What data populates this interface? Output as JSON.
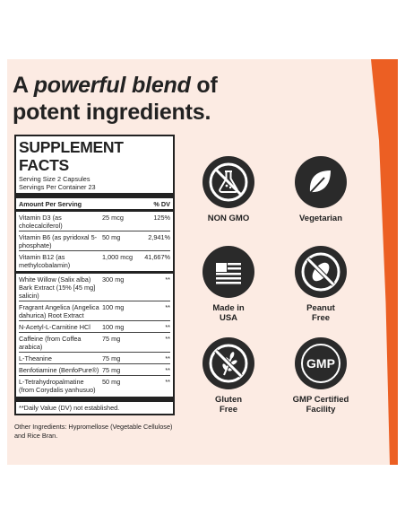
{
  "headline": {
    "pre": "A ",
    "emphasis": "powerful blend",
    "post_line1": " of",
    "line2": "potent ingredients."
  },
  "facts": {
    "title": "SUPPLEMENT FACTS",
    "serving_size": "Serving Size 2 Capsules",
    "servings_per_container": "Servings Per Container 23",
    "col_amount": "Amount Per Serving",
    "col_dv": "% DV",
    "rows": [
      {
        "name": "Vitamin D3 (as cholecalciferol)",
        "amount": "25 mcg",
        "dv": "125%"
      },
      {
        "name": "Vitamin B6 (as pyridoxal 5-phosphate)",
        "amount": "50 mg",
        "dv": "2,941%"
      },
      {
        "name": "Vitamin B12 (as methylcobalamin)",
        "amount": "1,000 mcg",
        "dv": "41,667%"
      },
      {
        "name": "White Willow (Salix alba) Bark Extract (15% [45 mg] salicin)",
        "amount": "300 mg",
        "dv": "**"
      },
      {
        "name": "Fragrant Angelica (Angelica dahurica) Root Extract",
        "amount": "100 mg",
        "dv": "**"
      },
      {
        "name": "N-Acetyl-L-Carnitine HCl",
        "amount": "100 mg",
        "dv": "**"
      },
      {
        "name": "Caffeine (from Coffea arabica)",
        "amount": "75 mg",
        "dv": "**"
      },
      {
        "name": "L-Theanine",
        "amount": "75 mg",
        "dv": "**"
      },
      {
        "name": "Benfotiamine (BenfoPure®)",
        "amount": "75 mg",
        "dv": "**"
      },
      {
        "name": "L-Tetrahydropalmatine (from Corydalis yanhusuo)",
        "amount": "50 mg",
        "dv": "**"
      }
    ],
    "footnote": "**Daily Value (DV) not established.",
    "other": "Other Ingredients: Hypromellose (Vegetable Cellulose) and Rice Bran."
  },
  "badges": [
    {
      "label": "NON GMO",
      "icon": "no-gmo-flask-icon"
    },
    {
      "label": "Vegetarian",
      "icon": "leaf-icon"
    },
    {
      "label": "Made in USA",
      "icon": "usa-flag-icon"
    },
    {
      "label": "Peanut Free",
      "icon": "no-peanut-icon"
    },
    {
      "label": "Gluten Free",
      "icon": "no-wheat-icon"
    },
    {
      "label": "GMP Certified Facility",
      "icon": "gmp-icon"
    }
  ],
  "gmp_text": "GMP",
  "colors": {
    "accent": "#ec5f23",
    "panel": "#fcebe3",
    "dark": "#2a2a2a"
  }
}
